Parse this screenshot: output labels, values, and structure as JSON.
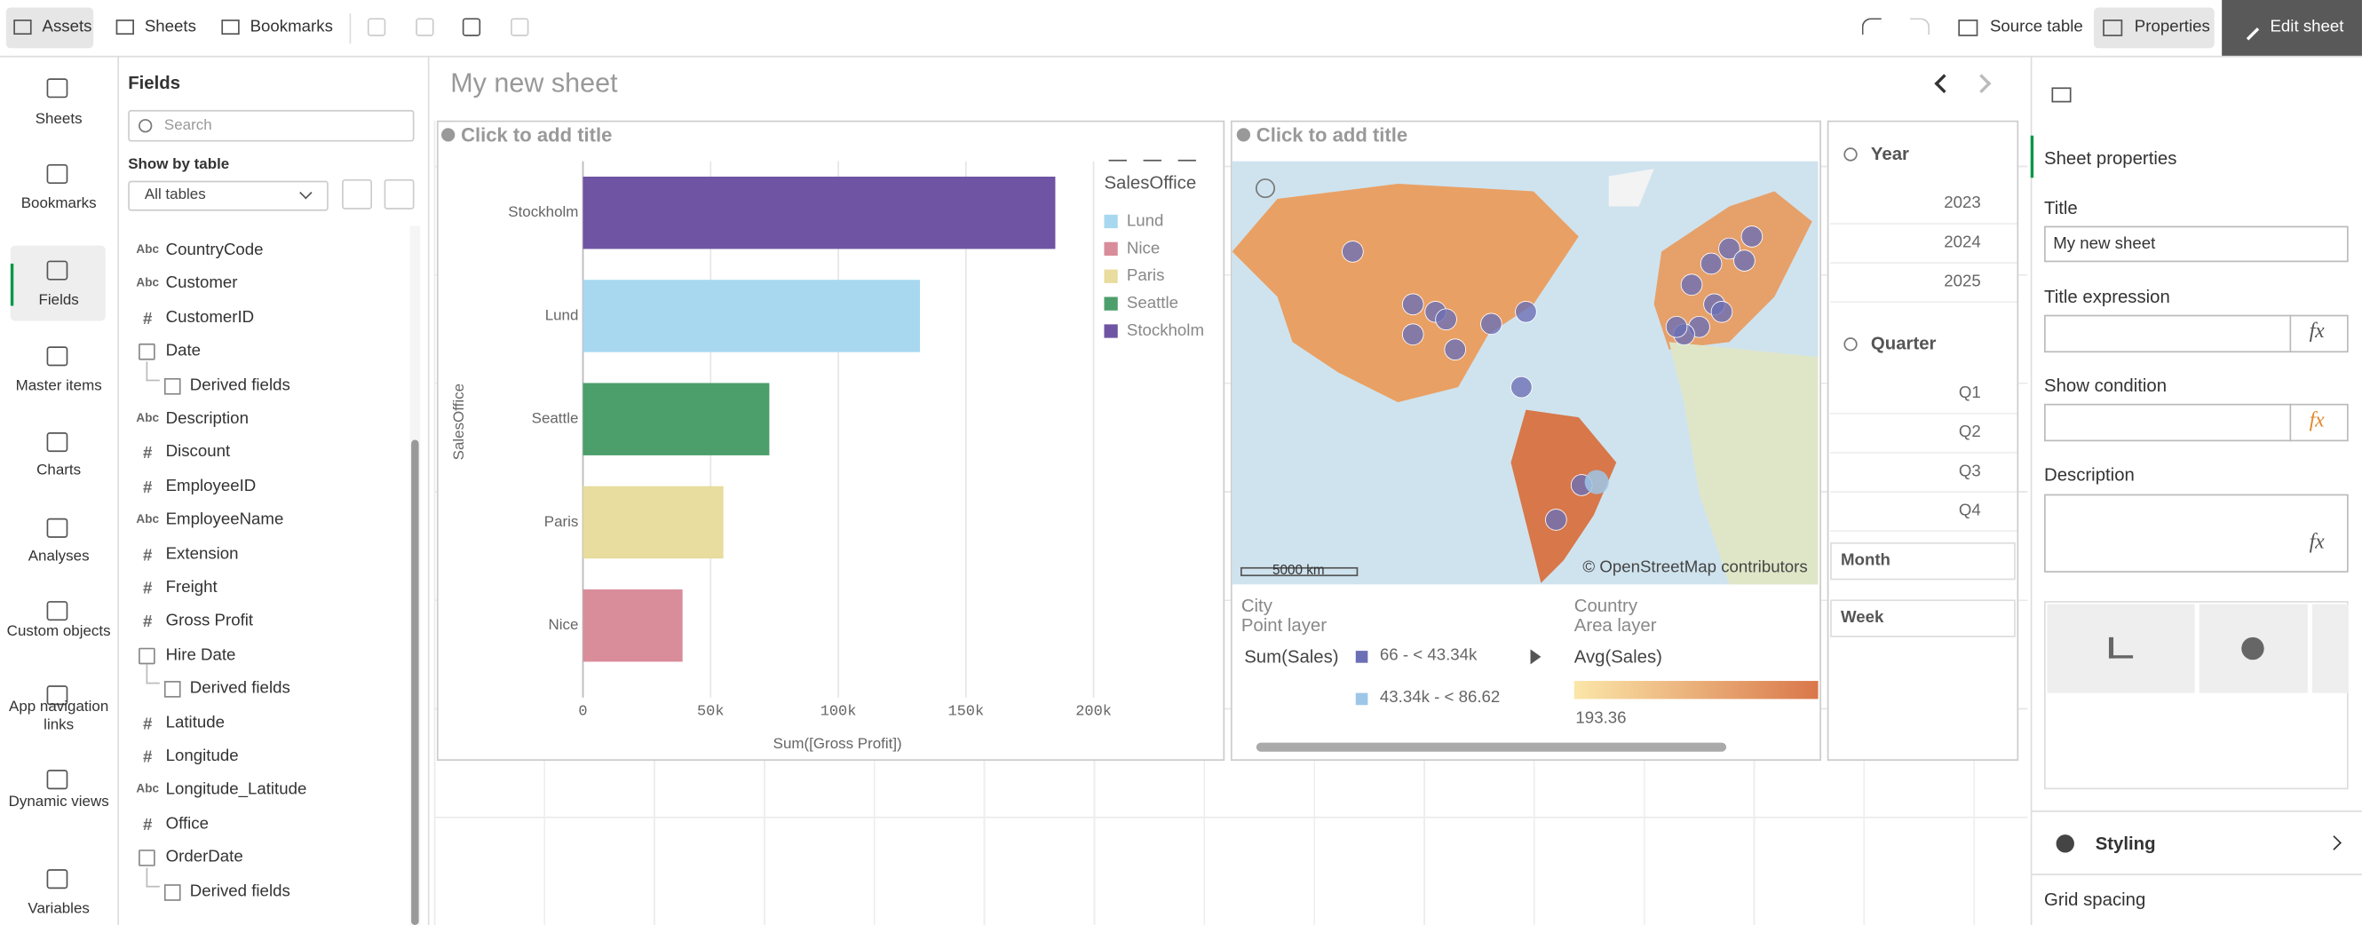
{
  "toolbar": {
    "assets": "Assets",
    "sheets": "Sheets",
    "bookmarks": "Bookmarks",
    "source_table": "Source table",
    "properties": "Properties",
    "edit_sheet": "Edit sheet"
  },
  "nav": [
    "Sheets",
    "Bookmarks",
    "Fields",
    "Master items",
    "Charts",
    "Analyses",
    "Custom objects",
    "App navigation links",
    "Dynamic views",
    "Variables"
  ],
  "fields_panel": {
    "title": "Fields",
    "search_placeholder": "Search",
    "show_by": "Show by table",
    "table_select": "All tables",
    "fields": [
      {
        "icon": "Abc",
        "name": "CountryCode"
      },
      {
        "icon": "Abc",
        "name": "Customer"
      },
      {
        "icon": "#",
        "name": "CustomerID"
      },
      {
        "name": "Date",
        "derived": "Derived fields"
      },
      {
        "icon": "Abc",
        "name": "Description"
      },
      {
        "icon": "#",
        "name": "Discount"
      },
      {
        "icon": "#",
        "name": "EmployeeID"
      },
      {
        "icon": "Abc",
        "name": "EmployeeName"
      },
      {
        "icon": "#",
        "name": "Extension"
      },
      {
        "icon": "#",
        "name": "Freight"
      },
      {
        "icon": "#",
        "name": "Gross Profit"
      },
      {
        "name": "Hire Date",
        "derived": "Derived fields"
      },
      {
        "icon": "#",
        "name": "Latitude"
      },
      {
        "icon": "#",
        "name": "Longitude"
      },
      {
        "icon": "Abc",
        "name": "Longitude_Latitude"
      },
      {
        "icon": "#",
        "name": "Office"
      },
      {
        "name": "OrderDate",
        "derived": "Derived fields"
      }
    ]
  },
  "sheet": {
    "title": "My new sheet"
  },
  "bar_chart": {
    "add_title": "Click to add title",
    "chart_data": {
      "type": "bar",
      "orientation": "horizontal",
      "categories": [
        "Stockholm",
        "Lund",
        "Seattle",
        "Paris",
        "Nice"
      ],
      "values": [
        185000,
        132000,
        73000,
        55000,
        39000
      ],
      "colors": [
        "#6f54a3",
        "#a8d8f0",
        "#4c9e6b",
        "#e8dc9e",
        "#d98c99"
      ],
      "y_label": "SalesOffice",
      "x_label": "Sum([Gross Profit])",
      "xlim": [
        0,
        200000
      ],
      "xticks": [
        0,
        {
          "value": 50000,
          "label": "50k"
        },
        {
          "value": 100000,
          "label": "100k"
        },
        {
          "value": 150000,
          "label": "150k"
        },
        {
          "value": 200000,
          "label": "200k"
        }
      ],
      "grid": true,
      "legend": {
        "title": "SalesOffice",
        "items": [
          {
            "label": "Lund",
            "color": "#a8d8f0"
          },
          {
            "label": "Nice",
            "color": "#d98c99"
          },
          {
            "label": "Paris",
            "color": "#e8dc9e"
          },
          {
            "label": "Seattle",
            "color": "#4c9e6b"
          },
          {
            "label": "Stockholm",
            "color": "#6f54a3"
          }
        ]
      }
    }
  },
  "map": {
    "add_title": "Click to add title",
    "scale": "5000 km",
    "attribution": "© OpenStreetMap contributors",
    "city": "City",
    "point_layer": "Point layer",
    "measure": "Sum(Sales)",
    "ranges": [
      {
        "label": "66 - < 43.34k",
        "color": "#6b6fb5"
      },
      {
        "label": "43.34k - < 86.62",
        "color": "#9dc6e8"
      }
    ],
    "country": "Country",
    "area_layer": "Area layer",
    "area_measure": "Avg(Sales)",
    "gradient_min": 193.36
  },
  "filters": {
    "year": {
      "label": "Year",
      "values": [
        2023,
        2024,
        2025
      ]
    },
    "quarter": {
      "label": "Quarter",
      "values": [
        "Q1",
        "Q2",
        "Q3",
        "Q4"
      ]
    },
    "month": "Month",
    "week": "Week"
  },
  "properties": {
    "title": "Sheet properties",
    "title_label": "Title",
    "title_value": "My new sheet",
    "title_expression": "Title expression",
    "show_condition": "Show condition",
    "description": "Description",
    "fx": "fx",
    "styling": "Styling",
    "grid_spacing": "Grid spacing"
  }
}
